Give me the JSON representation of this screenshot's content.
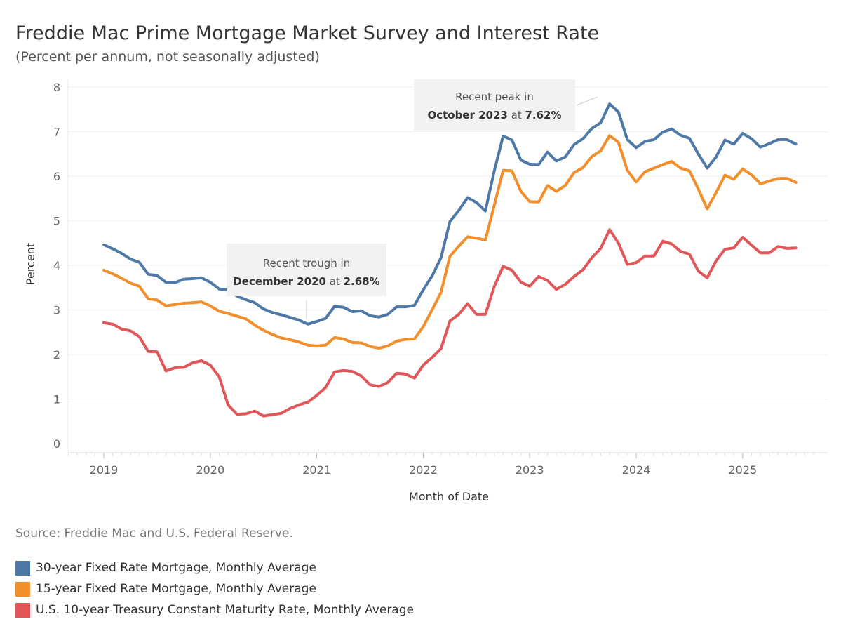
{
  "header": {
    "title": "Freddie Mac Prime Mortgage Market Survey and Interest Rate",
    "subtitle": "(Percent per annum, not seasonally adjusted)"
  },
  "footer": {
    "source": "Source: Freddie Mac and U.S. Federal Reserve."
  },
  "legend": [
    {
      "label": "30-year Fixed Rate Mortgage, Monthly Average",
      "color": "#4e79a7"
    },
    {
      "label": "15-year Fixed Rate Mortgage, Monthly Average",
      "color": "#f28e2b"
    },
    {
      "label": "U.S. 10-year Treasury Constant Maturity Rate, Monthly Average",
      "color": "#e15759"
    }
  ],
  "annotations": {
    "trough": {
      "line1": "Recent trough in",
      "date": "December 2020",
      "mid": " at ",
      "value": "2.68%"
    },
    "peak": {
      "line1": "Recent peak in",
      "date": "October 2023",
      "mid": " at ",
      "value": "7.62%"
    }
  },
  "chart_data": {
    "type": "line",
    "xlabel": "Month of Date",
    "ylabel": "Percent",
    "ylim": [
      0,
      8
    ],
    "yticks": [
      "0",
      "1",
      "2",
      "3",
      "4",
      "5",
      "6",
      "7",
      "8"
    ],
    "xticks": [
      "2019",
      "2020",
      "2021",
      "2022",
      "2023",
      "2024",
      "2025"
    ],
    "x_start": "2019-01",
    "x_end": "2025-07",
    "grid": true,
    "series": [
      {
        "name": "30-year Fixed Rate Mortgage, Monthly Average",
        "color": "#4e79a7",
        "values": [
          4.46,
          4.37,
          4.27,
          4.14,
          4.07,
          3.8,
          3.77,
          3.62,
          3.61,
          3.69,
          3.7,
          3.72,
          3.62,
          3.47,
          3.45,
          3.31,
          3.23,
          3.16,
          3.02,
          2.94,
          2.89,
          2.83,
          2.77,
          2.68,
          2.74,
          2.81,
          3.08,
          3.06,
          2.96,
          2.98,
          2.87,
          2.84,
          2.9,
          3.07,
          3.07,
          3.1,
          3.45,
          3.76,
          4.17,
          4.98,
          5.23,
          5.52,
          5.41,
          5.22,
          6.11,
          6.9,
          6.81,
          6.36,
          6.27,
          6.26,
          6.54,
          6.34,
          6.43,
          6.71,
          6.84,
          7.07,
          7.2,
          7.62,
          7.44,
          6.82,
          6.64,
          6.78,
          6.82,
          6.99,
          7.06,
          6.92,
          6.85,
          6.5,
          6.18,
          6.43,
          6.81,
          6.72,
          6.96,
          6.84,
          6.65,
          6.73,
          6.82,
          6.82,
          6.72
        ]
      },
      {
        "name": "15-year Fixed Rate Mortgage, Monthly Average",
        "color": "#f28e2b",
        "values": [
          3.89,
          3.81,
          3.71,
          3.6,
          3.53,
          3.25,
          3.22,
          3.09,
          3.12,
          3.15,
          3.16,
          3.18,
          3.09,
          2.97,
          2.92,
          2.86,
          2.8,
          2.66,
          2.54,
          2.45,
          2.37,
          2.33,
          2.28,
          2.21,
          2.19,
          2.21,
          2.38,
          2.35,
          2.27,
          2.26,
          2.18,
          2.14,
          2.19,
          2.3,
          2.34,
          2.35,
          2.62,
          3.0,
          3.39,
          4.2,
          4.43,
          4.64,
          4.61,
          4.57,
          5.34,
          6.13,
          6.12,
          5.66,
          5.43,
          5.42,
          5.79,
          5.66,
          5.79,
          6.08,
          6.19,
          6.44,
          6.57,
          6.91,
          6.76,
          6.13,
          5.87,
          6.1,
          6.18,
          6.26,
          6.33,
          6.18,
          6.12,
          5.71,
          5.27,
          5.63,
          6.02,
          5.93,
          6.16,
          6.03,
          5.83,
          5.89,
          5.95,
          5.95,
          5.86
        ]
      },
      {
        "name": "U.S. 10-year Treasury Constant Maturity Rate, Monthly Average",
        "color": "#e15759",
        "values": [
          2.71,
          2.68,
          2.57,
          2.53,
          2.4,
          2.07,
          2.06,
          1.63,
          1.7,
          1.71,
          1.81,
          1.86,
          1.76,
          1.5,
          0.87,
          0.66,
          0.67,
          0.73,
          0.62,
          0.65,
          0.68,
          0.79,
          0.87,
          0.93,
          1.08,
          1.26,
          1.61,
          1.64,
          1.62,
          1.52,
          1.32,
          1.28,
          1.37,
          1.58,
          1.56,
          1.47,
          1.76,
          1.93,
          2.13,
          2.75,
          2.9,
          3.14,
          2.9,
          2.9,
          3.52,
          3.98,
          3.89,
          3.62,
          3.53,
          3.75,
          3.66,
          3.46,
          3.57,
          3.75,
          3.9,
          4.17,
          4.38,
          4.8,
          4.5,
          4.02,
          4.06,
          4.21,
          4.21,
          4.54,
          4.48,
          4.31,
          4.25,
          3.87,
          3.72,
          4.1,
          4.36,
          4.39,
          4.63,
          4.45,
          4.28,
          4.28,
          4.42,
          4.38,
          4.39
        ]
      }
    ]
  }
}
